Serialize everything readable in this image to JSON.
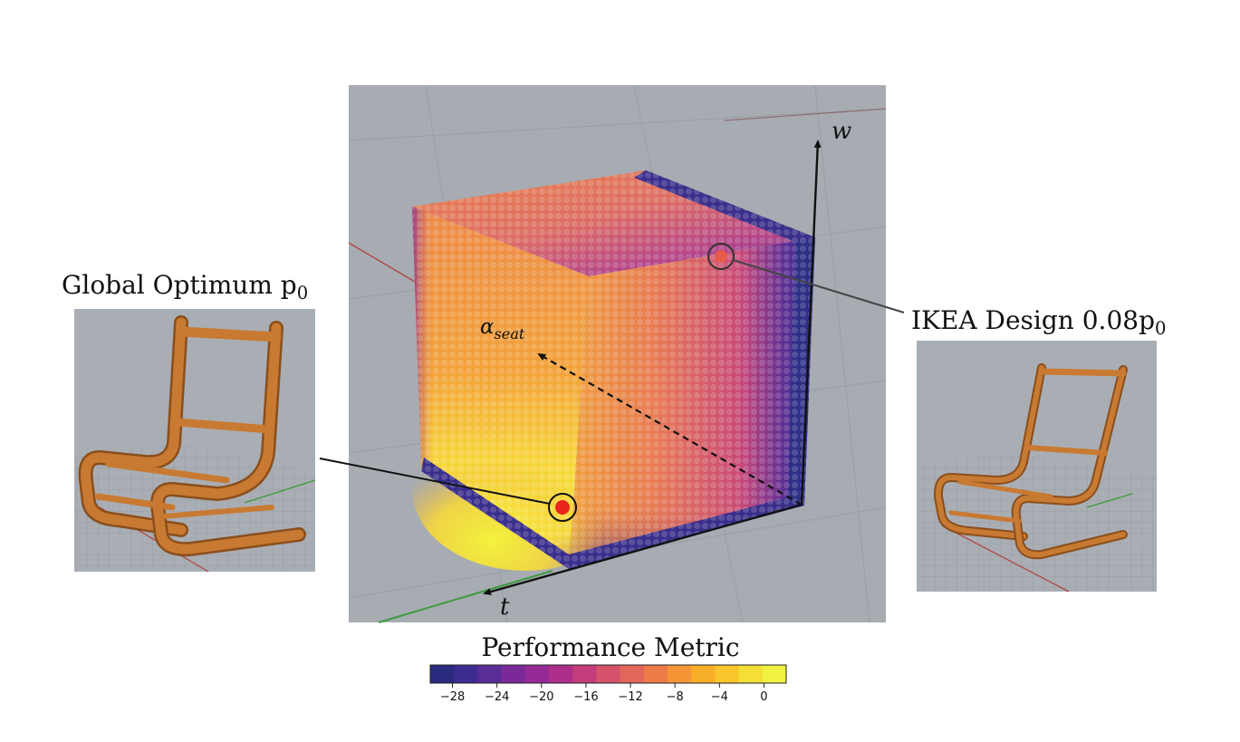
{
  "annotations": {
    "global_optimum": "Global Optimum p0",
    "ikea_design": "IKEA Design 0.08p0"
  },
  "axes": {
    "w": "w",
    "t": "t",
    "alpha_seat": "αseat"
  },
  "colorbar": {
    "title": "Performance Metric",
    "ticks": [
      "−28",
      "−24",
      "−20",
      "−16",
      "−12",
      "−8",
      "−4",
      "0"
    ],
    "colors": [
      "#2a2a7f",
      "#3d2c8f",
      "#5a2d96",
      "#7a2a98",
      "#962a95",
      "#ad2f89",
      "#c43c7a",
      "#d6516a",
      "#e3665a",
      "#ee7c49",
      "#f69536",
      "#f9ae2a",
      "#f8c52a",
      "#f3df36",
      "#f0f142"
    ]
  },
  "colors": {
    "viewport_bg": "#a7acb2",
    "chair": "#c87a32",
    "marker": "#e8261c",
    "cube_low": "#2d2f85",
    "cube_high": "#f2ee3a"
  }
}
